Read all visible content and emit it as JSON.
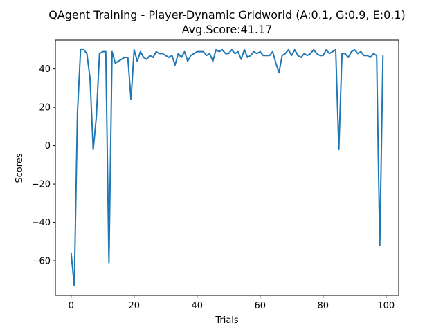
{
  "chart_data": {
    "type": "line",
    "title": "QAgent Training - Player-Dynamic Gridworld (A:0.1, G:0.9, E:0.1)",
    "subtitle": "Avg.Score:41.17",
    "xlabel": "Trials",
    "ylabel": "Scores",
    "xlim": [
      -5,
      104
    ],
    "ylim": [
      -78,
      55
    ],
    "xticks": [
      0,
      20,
      40,
      60,
      80,
      100
    ],
    "yticks": [
      -60,
      -40,
      -20,
      0,
      20,
      40
    ],
    "grid": false,
    "line_color": "#1f77b4",
    "series": [
      {
        "x": [
          0,
          1,
          2,
          3,
          4,
          5,
          6,
          7,
          8,
          9,
          10,
          11,
          12,
          13,
          14,
          15,
          16,
          17,
          18,
          19,
          20,
          21,
          22,
          23,
          24,
          25,
          26,
          27,
          28,
          29,
          30,
          31,
          32,
          33,
          34,
          35,
          36,
          37,
          38,
          39,
          40,
          41,
          42,
          43,
          44,
          45,
          46,
          47,
          48,
          49,
          50,
          51,
          52,
          53,
          54,
          55,
          56,
          57,
          58,
          59,
          60,
          61,
          62,
          63,
          64,
          65,
          66,
          67,
          68,
          69,
          70,
          71,
          72,
          73,
          74,
          75,
          76,
          77,
          78,
          79,
          80,
          81,
          82,
          83,
          84,
          85,
          86,
          87,
          88,
          89,
          90,
          91,
          92,
          93,
          94,
          95,
          96,
          97,
          98,
          99
        ],
        "values": [
          -56,
          -73,
          17,
          50,
          50,
          48,
          35,
          -2,
          15,
          48,
          49,
          49,
          -61,
          49,
          43,
          44,
          45,
          46,
          46,
          24,
          50,
          44,
          49,
          46,
          45,
          47,
          46,
          49,
          48,
          48,
          47,
          46,
          47,
          42,
          48,
          46,
          49,
          44,
          47,
          48,
          49,
          49,
          49,
          47,
          48,
          44,
          50,
          49,
          50,
          48,
          48,
          50,
          48,
          49,
          45,
          50,
          46,
          47,
          49,
          48,
          49,
          47,
          47,
          47,
          49,
          43,
          38,
          47,
          48,
          50,
          47,
          50,
          47,
          46,
          48,
          47,
          48,
          50,
          48,
          47,
          47,
          50,
          48,
          49,
          50,
          -2,
          48,
          48,
          46,
          49,
          50,
          48,
          49,
          47,
          47,
          46,
          48,
          47,
          -52,
          47
        ]
      }
    ]
  }
}
